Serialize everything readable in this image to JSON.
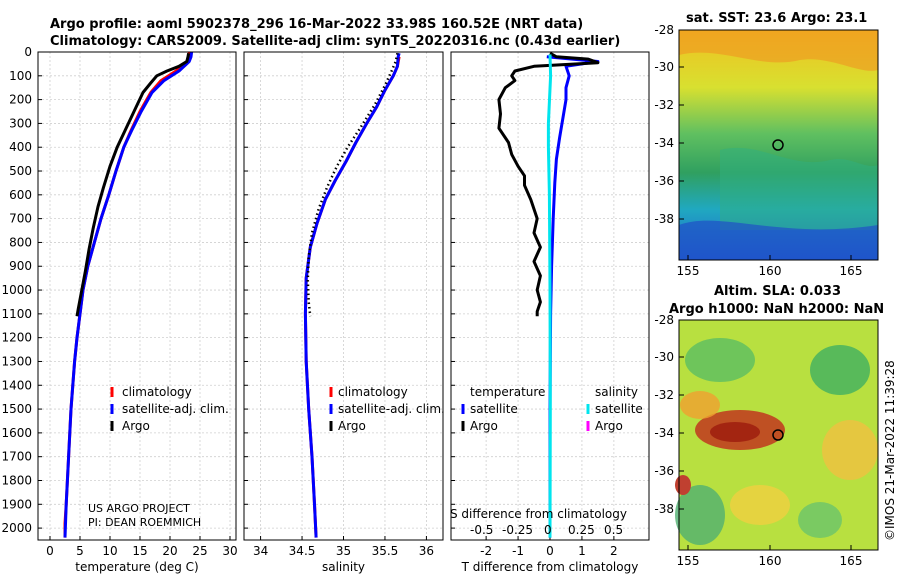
{
  "header": {
    "line1": "Argo profile: aoml 5902378_296 16-Mar-2022 33.98S 160.52E (NRT data)",
    "line2": "Climatology: CARS2009. Satellite-adj clim: synTS_20220316.nc (0.43d earlier)"
  },
  "timestamp": "©IMOS 21-Mar-2022 11:39:28",
  "colors": {
    "climatology": "#ff0000",
    "satellite": "#0000ff",
    "argo": "#000000",
    "sal_satellite": "#00e5ee",
    "sal_argo": "#ff00ff"
  },
  "chart_data": [
    {
      "type": "line",
      "name": "temperature-profile",
      "xlabel": "temperature (deg C)",
      "xlim": [
        -2,
        31
      ],
      "xticks": [
        0,
        5,
        10,
        15,
        20,
        25,
        30
      ],
      "ylim": [
        0,
        2050
      ],
      "yticks": [
        0,
        100,
        200,
        300,
        400,
        500,
        600,
        700,
        800,
        900,
        1000,
        1100,
        1200,
        1300,
        1400,
        1500,
        1600,
        1700,
        1800,
        1900,
        2000
      ],
      "series": [
        {
          "name": "climatology",
          "style": "solid",
          "color": "#ff0000",
          "points": [
            [
              23.2,
              0
            ],
            [
              23.2,
              20
            ],
            [
              23,
              40
            ],
            [
              21,
              80
            ],
            [
              18.5,
              120
            ],
            [
              16.8,
              170
            ],
            [
              15,
              250
            ],
            [
              13.5,
              330
            ],
            [
              12.3,
              400
            ],
            [
              11,
              500
            ],
            [
              9.8,
              600
            ],
            [
              8.5,
              700
            ],
            [
              7.4,
              800
            ],
            [
              6.3,
              900
            ],
            [
              5.5,
              1000
            ],
            [
              5,
              1100
            ],
            [
              4.5,
              1200
            ],
            [
              4.1,
              1300
            ],
            [
              3.8,
              1400
            ],
            [
              3.5,
              1500
            ],
            [
              3.3,
              1600
            ],
            [
              3.1,
              1700
            ],
            [
              2.9,
              1800
            ],
            [
              2.7,
              1900
            ],
            [
              2.5,
              1980
            ],
            [
              2.5,
              2040
            ]
          ]
        },
        {
          "name": "satellite-adj. clim.",
          "style": "solid",
          "color": "#0000ff",
          "points": [
            [
              23.6,
              0
            ],
            [
              23.5,
              20
            ],
            [
              23.2,
              40
            ],
            [
              21.5,
              80
            ],
            [
              19,
              120
            ],
            [
              17,
              170
            ],
            [
              15.2,
              250
            ],
            [
              13.6,
              330
            ],
            [
              12.3,
              400
            ],
            [
              11,
              500
            ],
            [
              9.8,
              600
            ],
            [
              8.5,
              700
            ],
            [
              7.4,
              800
            ],
            [
              6.3,
              900
            ],
            [
              5.5,
              1000
            ],
            [
              5,
              1100
            ],
            [
              4.5,
              1200
            ],
            [
              4.1,
              1300
            ],
            [
              3.8,
              1400
            ],
            [
              3.5,
              1500
            ],
            [
              3.3,
              1600
            ],
            [
              3.1,
              1700
            ],
            [
              2.9,
              1800
            ],
            [
              2.7,
              1900
            ],
            [
              2.5,
              2040
            ]
          ]
        },
        {
          "name": "Argo",
          "style": "solid",
          "color": "#000000",
          "points": [
            [
              23.1,
              5
            ],
            [
              23,
              20
            ],
            [
              22.8,
              40
            ],
            [
              21.5,
              60
            ],
            [
              19.5,
              80
            ],
            [
              17.8,
              100
            ],
            [
              16.8,
              130
            ],
            [
              15.5,
              170
            ],
            [
              14,
              250
            ],
            [
              12.5,
              330
            ],
            [
              11.2,
              400
            ],
            [
              10,
              480
            ],
            [
              8.9,
              570
            ],
            [
              8,
              650
            ],
            [
              7.2,
              740
            ],
            [
              6.5,
              830
            ],
            [
              5.9,
              920
            ],
            [
              5.3,
              1000
            ],
            [
              4.7,
              1080
            ],
            [
              4.5,
              1110
            ]
          ]
        }
      ]
    },
    {
      "type": "line",
      "name": "salinity-profile",
      "xlabel": "salinity",
      "xlim": [
        33.8,
        36.2
      ],
      "xticks": [
        34,
        34.5,
        35,
        35.5,
        36
      ],
      "ylim": [
        0,
        2050
      ],
      "series": [
        {
          "name": "climatology",
          "style": "solid",
          "color": "#ff0000",
          "points": [
            [
              35.67,
              20
            ],
            [
              35.65,
              60
            ],
            [
              35.6,
              100
            ],
            [
              35.5,
              160
            ],
            [
              35.4,
              230
            ],
            [
              35.28,
              300
            ],
            [
              35.15,
              380
            ],
            [
              35.03,
              460
            ],
            [
              34.9,
              540
            ],
            [
              34.78,
              620
            ],
            [
              34.68,
              720
            ],
            [
              34.6,
              820
            ],
            [
              34.55,
              950
            ],
            [
              34.54,
              1100
            ],
            [
              34.55,
              1300
            ],
            [
              34.58,
              1500
            ],
            [
              34.62,
              1700
            ],
            [
              34.65,
              1900
            ],
            [
              34.67,
              2040
            ]
          ]
        },
        {
          "name": "satellite-adj. clim.",
          "style": "solid",
          "color": "#0000ff",
          "points": [
            [
              35.67,
              5
            ],
            [
              35.66,
              20
            ],
            [
              35.65,
              60
            ],
            [
              35.6,
              100
            ],
            [
              35.5,
              160
            ],
            [
              35.4,
              230
            ],
            [
              35.28,
              300
            ],
            [
              35.15,
              380
            ],
            [
              35.03,
              460
            ],
            [
              34.9,
              540
            ],
            [
              34.78,
              620
            ],
            [
              34.68,
              720
            ],
            [
              34.6,
              820
            ],
            [
              34.55,
              950
            ],
            [
              34.54,
              1100
            ],
            [
              34.55,
              1300
            ],
            [
              34.58,
              1500
            ],
            [
              34.62,
              1700
            ],
            [
              34.65,
              1900
            ],
            [
              34.67,
              2040
            ]
          ]
        },
        {
          "name": "Argo",
          "style": "dotted",
          "color": "#000000",
          "points": [
            [
              35.65,
              5
            ],
            [
              35.63,
              40
            ],
            [
              35.58,
              80
            ],
            [
              35.5,
              140
            ],
            [
              35.38,
              220
            ],
            [
              35.2,
              320
            ],
            [
              35.05,
              400
            ],
            [
              34.92,
              480
            ],
            [
              34.8,
              570
            ],
            [
              34.7,
              660
            ],
            [
              34.62,
              760
            ],
            [
              34.58,
              860
            ],
            [
              34.57,
              960
            ],
            [
              34.58,
              1050
            ],
            [
              34.6,
              1110
            ]
          ]
        }
      ]
    },
    {
      "type": "line",
      "name": "difference-profile",
      "xlabel": "T difference from climatology",
      "xlabel2": "S difference from climatology",
      "xlim": [
        -3.1,
        3.1
      ],
      "xticks": [
        -2,
        -1,
        0,
        1,
        2
      ],
      "xticks_s": [
        "-0.5",
        "-0.25",
        "0",
        "0.25",
        "0.5"
      ],
      "ylim": [
        0,
        2050
      ],
      "series": [
        {
          "name": "T satellite",
          "style": "solid",
          "color": "#0000ff",
          "points": [
            [
              -0.1,
              20
            ],
            [
              1.5,
              40
            ],
            [
              0.5,
              60
            ],
            [
              0.6,
              100
            ],
            [
              0.5,
              150
            ],
            [
              0.5,
              200
            ],
            [
              0.4,
              280
            ],
            [
              0.3,
              360
            ],
            [
              0.2,
              450
            ],
            [
              0.15,
              550
            ],
            [
              0.1,
              700
            ],
            [
              0.05,
              900
            ],
            [
              0.02,
              1100
            ],
            [
              0,
              1500
            ],
            [
              0,
              2040
            ]
          ]
        },
        {
          "name": "T Argo",
          "style": "solid",
          "color": "#000000",
          "points": [
            [
              0,
              5
            ],
            [
              0.2,
              20
            ],
            [
              1.2,
              30
            ],
            [
              1.5,
              45
            ],
            [
              -0.5,
              60
            ],
            [
              -1.1,
              80
            ],
            [
              -1.2,
              100
            ],
            [
              -1.1,
              120
            ],
            [
              -1.4,
              150
            ],
            [
              -1.6,
              200
            ],
            [
              -1.55,
              260
            ],
            [
              -1.6,
              320
            ],
            [
              -1.3,
              380
            ],
            [
              -1.2,
              430
            ],
            [
              -1,
              480
            ],
            [
              -0.8,
              520
            ],
            [
              -0.8,
              560
            ],
            [
              -0.6,
              620
            ],
            [
              -0.4,
              700
            ],
            [
              -0.5,
              760
            ],
            [
              -0.3,
              820
            ],
            [
              -0.5,
              880
            ],
            [
              -0.3,
              940
            ],
            [
              -0.4,
              1000
            ],
            [
              -0.3,
              1050
            ],
            [
              -0.4,
              1090
            ],
            [
              -0.4,
              1110
            ]
          ]
        },
        {
          "name": "S satellite",
          "style": "solid",
          "color": "#00e5ee",
          "points": [
            [
              0,
              10
            ],
            [
              0.02,
              100
            ],
            [
              -0.05,
              300
            ],
            [
              -0.05,
              400
            ],
            [
              -0.02,
              600
            ],
            [
              0,
              1000
            ],
            [
              0.01,
              1500
            ],
            [
              0,
              2040
            ]
          ]
        },
        {
          "name": "S Argo",
          "style": "solid",
          "color": "#ff00ff",
          "points": []
        }
      ]
    }
  ],
  "axes": {
    "ylabels": [
      "0",
      "100",
      "200",
      "300",
      "400",
      "500",
      "600",
      "700",
      "800",
      "900",
      "1000",
      "1100",
      "1200",
      "1300",
      "1400",
      "1500",
      "1600",
      "1700",
      "1800",
      "1900",
      "2000"
    ]
  },
  "legend_t": {
    "items": [
      "climatology",
      "satellite-adj. clim.",
      "Argo"
    ]
  },
  "legend_s": {
    "items": [
      "climatology",
      "satellite-adj. clim.",
      "Argo"
    ]
  },
  "legend_diff": {
    "col1_title": "temperature",
    "col2_title": "salinity",
    "col1": [
      "satellite",
      "Argo"
    ],
    "col2": [
      "satellite",
      "Argo"
    ]
  },
  "credit": {
    "line1": "US ARGO PROJECT",
    "line2": "PI: DEAN ROEMMICH"
  },
  "maps": {
    "sst": {
      "title": "sat. SST: 23.6 Argo: 23.1",
      "yticks": [
        "-28",
        "-30",
        "-32",
        "-34",
        "-36",
        "-38"
      ],
      "xticks": [
        "155",
        "160",
        "165"
      ]
    },
    "sla": {
      "title1": "Altim. SLA: 0.033",
      "title2": "Argo h1000: NaN h2000: NaN",
      "yticks": [
        "-28",
        "-30",
        "-32",
        "-34",
        "-36",
        "-38"
      ],
      "xticks": [
        "155",
        "160",
        "165"
      ]
    }
  }
}
